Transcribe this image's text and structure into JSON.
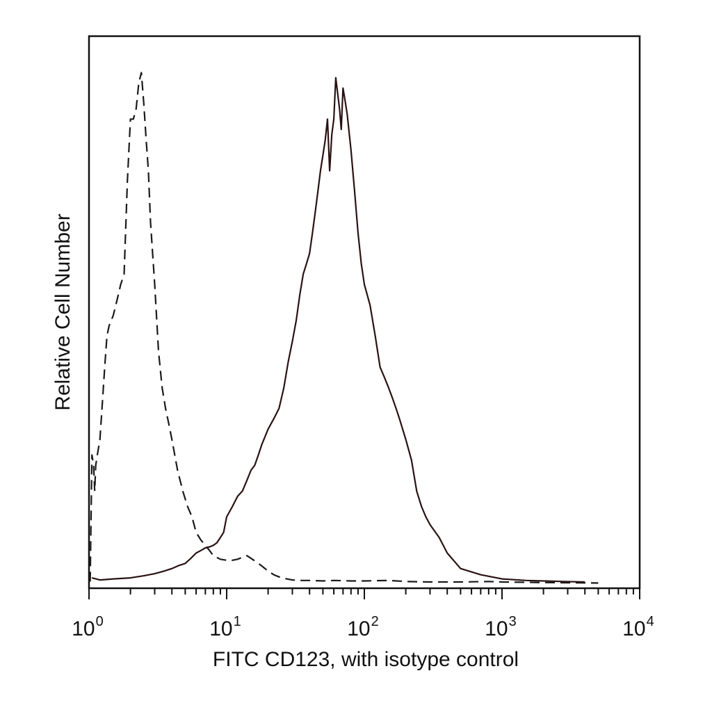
{
  "chart_data": {
    "type": "line",
    "title": "",
    "xlabel": "FITC CD123, with isotype control",
    "ylabel": "Relative Cell Number",
    "x_scale": "log",
    "xlim": [
      1,
      10000
    ],
    "ylim": [
      0,
      1.0
    ],
    "grid": false,
    "legend": "none",
    "x_tick_labels": [
      {
        "base": "10",
        "exp": "0"
      },
      {
        "base": "10",
        "exp": "1"
      },
      {
        "base": "10",
        "exp": "2"
      },
      {
        "base": "10",
        "exp": "3"
      },
      {
        "base": "10",
        "exp": "4"
      }
    ],
    "series": [
      {
        "style": "dashed",
        "color": "#1a1a1a",
        "x": [
          1.02,
          1.05,
          1.08,
          1.1,
          1.12,
          1.15,
          1.2,
          1.25,
          1.3,
          1.35,
          1.4,
          1.5,
          1.6,
          1.7,
          1.8,
          1.9,
          2.0,
          2.1,
          2.2,
          2.3,
          2.4,
          2.5,
          2.6,
          2.7,
          2.8,
          3.0,
          3.2,
          3.4,
          3.6,
          3.8,
          4.0,
          4.4,
          4.8,
          5.2,
          5.6,
          6.0,
          6.5,
          7.0,
          7.5,
          8.0,
          9.0,
          10,
          11,
          12,
          13,
          14,
          15,
          16,
          17,
          18,
          19,
          20,
          22,
          25,
          30,
          35,
          40,
          50,
          60,
          80,
          100,
          150,
          200,
          300,
          500,
          800,
          1000,
          2000,
          5000
        ],
        "y": [
          0.005,
          0.25,
          0.23,
          0.18,
          0.23,
          0.25,
          0.28,
          0.35,
          0.42,
          0.48,
          0.5,
          0.52,
          0.55,
          0.58,
          0.6,
          0.78,
          0.9,
          0.9,
          0.92,
          0.97,
          0.99,
          0.93,
          0.86,
          0.8,
          0.7,
          0.58,
          0.45,
          0.38,
          0.34,
          0.31,
          0.28,
          0.22,
          0.18,
          0.15,
          0.13,
          0.1,
          0.085,
          0.075,
          0.065,
          0.055,
          0.048,
          0.046,
          0.046,
          0.048,
          0.052,
          0.055,
          0.05,
          0.045,
          0.04,
          0.035,
          0.03,
          0.025,
          0.018,
          0.012,
          0.008,
          0.007,
          0.007,
          0.006,
          0.007,
          0.006,
          0.006,
          0.007,
          0.005,
          0.004,
          0.004,
          0.005,
          0.004,
          0.003,
          0.002
        ]
      },
      {
        "style": "solid",
        "color": "#2a1212",
        "x": [
          1.05,
          1.2,
          1.5,
          2.0,
          2.5,
          3.0,
          3.5,
          4.0,
          4.5,
          5.0,
          5.5,
          6.0,
          6.5,
          7.0,
          7.5,
          8.0,
          8.5,
          9.0,
          9.5,
          10,
          11,
          12,
          13,
          14,
          15,
          16,
          17,
          18,
          20,
          22,
          24,
          26,
          28,
          30,
          32,
          34,
          36,
          38,
          40,
          42,
          44,
          46,
          48,
          50,
          52,
          54,
          56,
          58,
          60,
          62,
          64,
          66,
          68,
          70,
          72,
          75,
          80,
          85,
          90,
          95,
          100,
          110,
          120,
          130,
          140,
          150,
          160,
          170,
          180,
          200,
          220,
          240,
          260,
          280,
          300,
          350,
          400,
          500,
          700,
          1000,
          1500,
          2000,
          2800,
          4000
        ],
        "y": [
          0.012,
          0.008,
          0.01,
          0.012,
          0.016,
          0.02,
          0.025,
          0.03,
          0.036,
          0.04,
          0.05,
          0.06,
          0.065,
          0.07,
          0.072,
          0.075,
          0.08,
          0.09,
          0.1,
          0.13,
          0.15,
          0.17,
          0.18,
          0.2,
          0.22,
          0.23,
          0.25,
          0.27,
          0.3,
          0.32,
          0.34,
          0.38,
          0.43,
          0.47,
          0.51,
          0.56,
          0.6,
          0.62,
          0.64,
          0.68,
          0.72,
          0.76,
          0.8,
          0.83,
          0.86,
          0.9,
          0.8,
          0.87,
          0.9,
          0.98,
          0.95,
          0.92,
          0.88,
          0.96,
          0.94,
          0.91,
          0.84,
          0.76,
          0.68,
          0.62,
          0.58,
          0.54,
          0.48,
          0.42,
          0.4,
          0.38,
          0.36,
          0.34,
          0.32,
          0.28,
          0.24,
          0.18,
          0.15,
          0.13,
          0.115,
          0.09,
          0.06,
          0.03,
          0.018,
          0.01,
          0.007,
          0.006,
          0.005,
          0.004
        ]
      }
    ]
  }
}
